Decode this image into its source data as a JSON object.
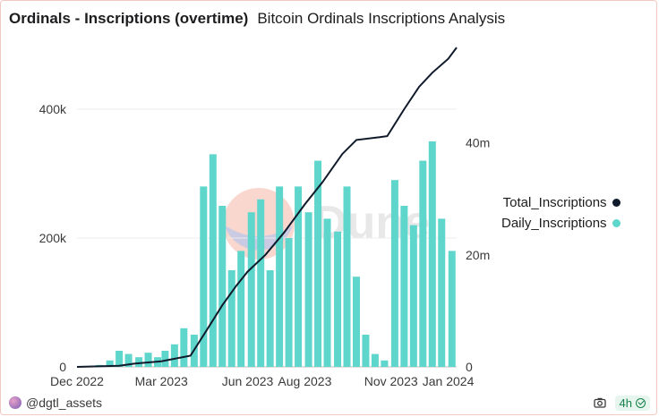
{
  "header": {
    "title": "Ordinals - Inscriptions (overtime)",
    "subtitle": "Bitcoin Ordinals Inscriptions Analysis"
  },
  "footer": {
    "author": "@dgtl_assets",
    "refresh": "4h",
    "icons": [
      "camera-icon",
      "check-icon"
    ]
  },
  "colors": {
    "daily": "#5fd6cc",
    "total": "#0f1a2b",
    "grid": "#ececec"
  },
  "chart_data": {
    "type": "bar+line",
    "title": "",
    "x_tick_labels": [
      "Dec 2022",
      "Mar 2023",
      "Jun 2023",
      "Aug 2023",
      "Nov 2023",
      "Jan 2024"
    ],
    "x_range": [
      "2022-12-01",
      "2024-01-10"
    ],
    "y_left": {
      "ticks": [
        "0",
        "200k",
        "400k"
      ],
      "range": [
        0,
        500000
      ],
      "grid": true
    },
    "y_right": {
      "ticks": [
        "0",
        "20m",
        "40m"
      ],
      "range": [
        0,
        57500000
      ]
    },
    "legend": {
      "position": "right",
      "entries": [
        "Total_Inscriptions",
        "Daily_Inscriptions"
      ]
    },
    "series": [
      {
        "name": "Daily_Inscriptions",
        "kind": "bar",
        "axis": "left",
        "x": [
          "2022-12-15",
          "2022-12-25",
          "2023-01-05",
          "2023-01-15",
          "2023-01-25",
          "2023-02-05",
          "2023-02-15",
          "2023-02-25",
          "2023-03-05",
          "2023-03-15",
          "2023-03-25",
          "2023-04-05",
          "2023-04-15",
          "2023-04-25",
          "2023-05-05",
          "2023-05-15",
          "2023-05-25",
          "2023-06-05",
          "2023-06-15",
          "2023-06-25",
          "2023-07-05",
          "2023-07-15",
          "2023-07-25",
          "2023-08-05",
          "2023-08-15",
          "2023-08-25",
          "2023-09-05",
          "2023-09-15",
          "2023-09-25",
          "2023-10-05",
          "2023-10-15",
          "2023-10-25",
          "2023-11-05",
          "2023-11-15",
          "2023-11-25",
          "2023-12-05",
          "2023-12-15",
          "2023-12-25",
          "2024-01-05"
        ],
        "values": [
          0,
          3000,
          10000,
          25000,
          20000,
          15000,
          22000,
          15000,
          25000,
          35000,
          60000,
          50000,
          280000,
          330000,
          250000,
          150000,
          180000,
          240000,
          260000,
          150000,
          280000,
          200000,
          280000,
          240000,
          320000,
          230000,
          210000,
          280000,
          140000,
          50000,
          20000,
          10000,
          290000,
          250000,
          220000,
          320000,
          350000,
          230000,
          180000
        ]
      },
      {
        "name": "Total_Inscriptions",
        "kind": "line",
        "axis": "right",
        "x": [
          "2022-12-01",
          "2023-01-15",
          "2023-02-01",
          "2023-03-01",
          "2023-04-01",
          "2023-04-20",
          "2023-05-05",
          "2023-05-20",
          "2023-06-01",
          "2023-06-20",
          "2023-07-10",
          "2023-08-01",
          "2023-08-20",
          "2023-09-10",
          "2023-09-25",
          "2023-10-20",
          "2023-10-28",
          "2023-11-15",
          "2023-12-01",
          "2023-12-15",
          "2024-01-01",
          "2024-01-10"
        ],
        "values": [
          0,
          200000,
          600000,
          1000000,
          2000000,
          7000000,
          11000000,
          14500000,
          17000000,
          20000000,
          24000000,
          29000000,
          33000000,
          38000000,
          40500000,
          41000000,
          41200000,
          46000000,
          50000000,
          52500000,
          55000000,
          57000000
        ]
      }
    ]
  }
}
